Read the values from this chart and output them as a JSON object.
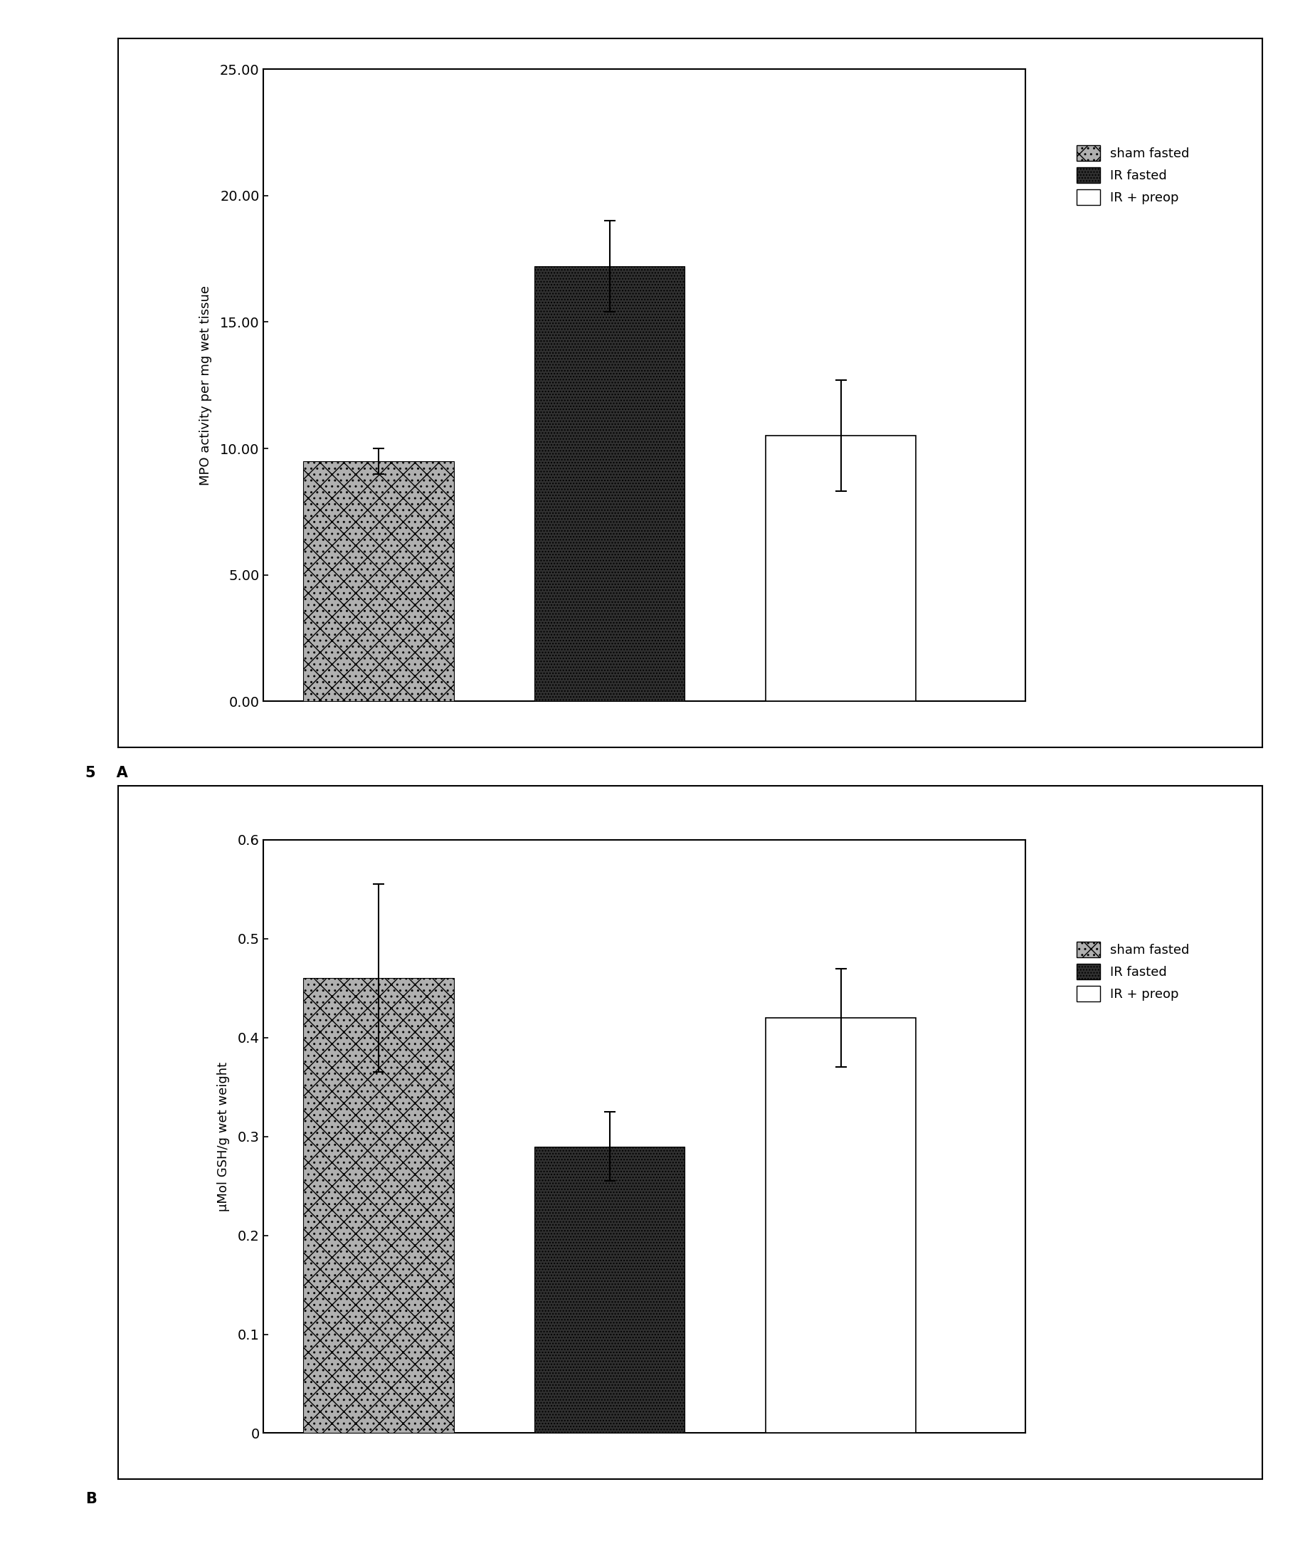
{
  "chart_a": {
    "values": [
      9.5,
      17.2,
      10.5
    ],
    "errors": [
      0.5,
      1.8,
      2.2
    ],
    "ylabel": "MPO activity per mg wet tissue",
    "ylim": [
      0,
      25
    ],
    "yticks": [
      0.0,
      5.0,
      10.0,
      15.0,
      20.0,
      25.0
    ],
    "legend": [
      "sham fasted",
      "IR fasted",
      "IR + preop"
    ]
  },
  "chart_b": {
    "values": [
      0.46,
      0.29,
      0.42
    ],
    "errors": [
      0.095,
      0.035,
      0.05
    ],
    "ylabel": "μMol GSH/g wet weight",
    "ylim": [
      0,
      0.6
    ],
    "yticks": [
      0,
      0.1,
      0.2,
      0.3,
      0.4,
      0.5,
      0.6
    ]
  },
  "label_a": "5    A",
  "label_b": "B",
  "bar_width": 0.65,
  "x_positions": [
    1,
    2,
    3
  ]
}
